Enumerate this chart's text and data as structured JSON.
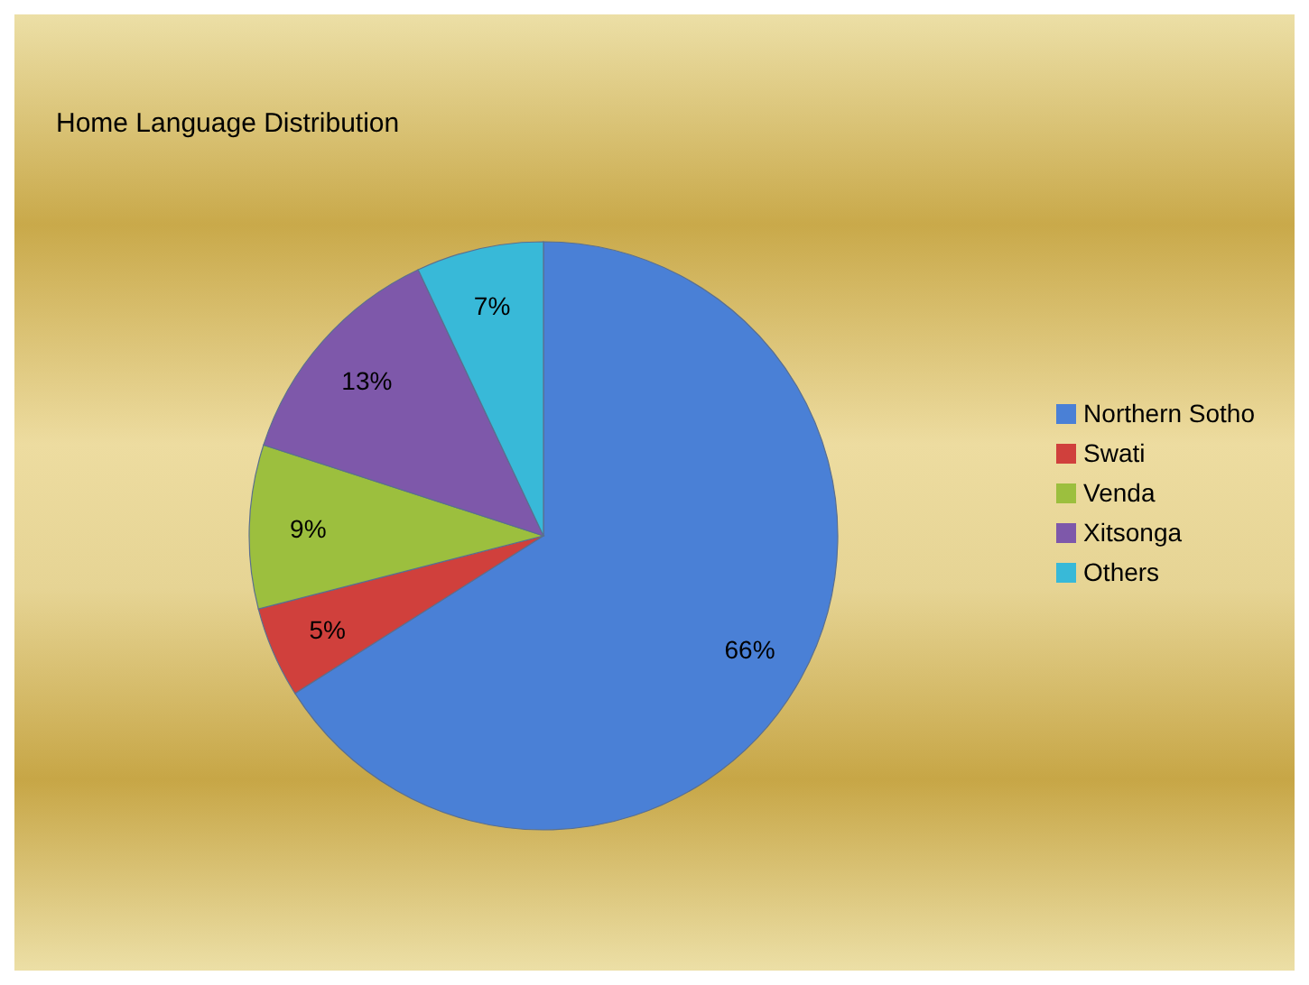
{
  "chart_data": {
    "type": "pie",
    "title": "Home Language Distribution",
    "categories": [
      "Northern Sotho",
      "Swati",
      "Venda",
      "Xitsonga",
      "Others"
    ],
    "values": [
      66,
      5,
      9,
      13,
      7
    ],
    "value_labels": [
      "66%",
      "5%",
      "9%",
      "13%",
      "7%"
    ],
    "colors": [
      "#4a80d6",
      "#d0403c",
      "#9cbf3e",
      "#7e58aa",
      "#38b9d8"
    ],
    "legend": "right"
  }
}
